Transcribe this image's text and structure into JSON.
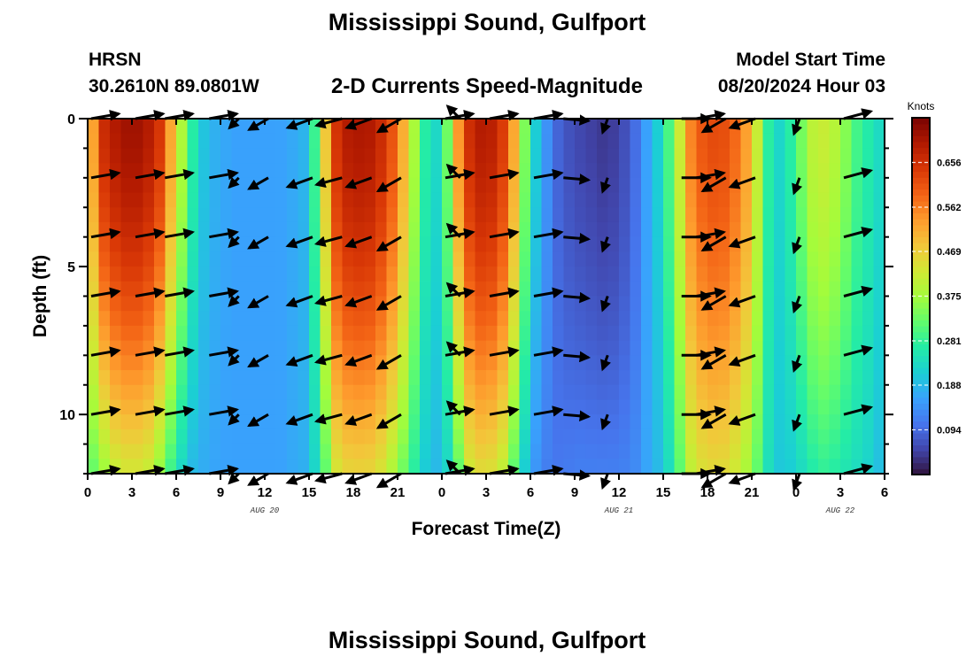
{
  "header": {
    "title": "Mississippi Sound, Gulfport",
    "station_id": "HRSN",
    "station_coords": "30.2610N  89.0801W",
    "subtitle": "2-D Currents Speed-Magnitude",
    "model_start_label": "Model Start Time",
    "model_start_value": "08/20/2024 Hour 03"
  },
  "footer": {
    "title": "Mississippi Sound, Gulfport"
  },
  "chart_data": {
    "type": "heatmap",
    "xlabel": "Forecast Time(Z)",
    "ylabel": "Depth (ft)",
    "x_range_hours": [
      0,
      54
    ],
    "x_tick_labels": [
      "0",
      "3",
      "6",
      "9",
      "12",
      "15",
      "18",
      "21",
      "0",
      "3",
      "6",
      "9",
      "12",
      "15",
      "18",
      "21",
      "0",
      "3",
      "6"
    ],
    "date_labels": [
      {
        "hour": 12,
        "label": "AUG 20"
      },
      {
        "hour": 36,
        "label": "AUG 21"
      },
      {
        "hour": 51,
        "label": "AUG 22"
      }
    ],
    "y_range_ft": [
      0,
      12
    ],
    "y_tick_labels": [
      {
        "value": 0,
        "label": "0"
      },
      {
        "value": 5,
        "label": "5"
      },
      {
        "value": 10,
        "label": "10"
      }
    ],
    "depths_ft": [
      0,
      2,
      4,
      6,
      8,
      10,
      12
    ],
    "speed_profile": {
      "hours": [
        0,
        1,
        2,
        3,
        4,
        5,
        6,
        7,
        8,
        9,
        10,
        11,
        12,
        13,
        14,
        15,
        16,
        17,
        18,
        19,
        20,
        21,
        22,
        23,
        24,
        25,
        26,
        27,
        28,
        29,
        30,
        31,
        32,
        33,
        34,
        35,
        36,
        37,
        38,
        39,
        40,
        41,
        42,
        43,
        44,
        45,
        46,
        47,
        48,
        49,
        50,
        51,
        52,
        53,
        54
      ],
      "surface_speed_knots": [
        0.45,
        0.66,
        0.7,
        0.72,
        0.7,
        0.64,
        0.45,
        0.28,
        0.19,
        0.17,
        0.16,
        0.16,
        0.16,
        0.16,
        0.17,
        0.19,
        0.45,
        0.68,
        0.7,
        0.7,
        0.66,
        0.58,
        0.4,
        0.25,
        0.22,
        0.52,
        0.68,
        0.7,
        0.66,
        0.5,
        0.25,
        0.15,
        0.08,
        0.06,
        0.05,
        0.04,
        0.05,
        0.09,
        0.17,
        0.24,
        0.4,
        0.58,
        0.62,
        0.62,
        0.58,
        0.5,
        0.28,
        0.22,
        0.3,
        0.4,
        0.42,
        0.38,
        0.3,
        0.26,
        0.22
      ],
      "bottom_speed_knots": [
        0.3,
        0.36,
        0.42,
        0.43,
        0.42,
        0.35,
        0.25,
        0.19,
        0.17,
        0.16,
        0.16,
        0.16,
        0.16,
        0.16,
        0.17,
        0.18,
        0.3,
        0.45,
        0.46,
        0.46,
        0.43,
        0.36,
        0.28,
        0.2,
        0.18,
        0.3,
        0.44,
        0.45,
        0.42,
        0.3,
        0.16,
        0.12,
        0.11,
        0.12,
        0.12,
        0.12,
        0.12,
        0.13,
        0.17,
        0.2,
        0.3,
        0.42,
        0.45,
        0.45,
        0.42,
        0.36,
        0.25,
        0.2,
        0.22,
        0.26,
        0.28,
        0.26,
        0.24,
        0.22,
        0.18
      ]
    },
    "arrows": {
      "hours": [
        0,
        3,
        5,
        8,
        10,
        12,
        15,
        17,
        19,
        21,
        24,
        25,
        27,
        30,
        32,
        35,
        40,
        41,
        43,
        45,
        48,
        51
      ],
      "direction_deg": [
        80,
        80,
        80,
        80,
        225,
        240,
        250,
        255,
        250,
        240,
        80,
        315,
        80,
        80,
        95,
        200,
        90,
        80,
        240,
        250,
        200,
        75
      ],
      "length_hours": [
        1.9,
        1.9,
        1.9,
        1.9,
        0.9,
        1.5,
        1.8,
        1.8,
        1.8,
        1.8,
        1.9,
        1.2,
        1.9,
        1.9,
        1.7,
        1.0,
        1.9,
        1.9,
        1.8,
        1.8,
        1.1,
        1.9
      ]
    },
    "colorbar": {
      "label": "Knots",
      "min": 0.0,
      "max": 0.75,
      "tick_labels": [
        {
          "value": 0.656,
          "label": "0.656"
        },
        {
          "value": 0.562,
          "label": "0.562"
        },
        {
          "value": 0.469,
          "label": "0.469"
        },
        {
          "value": 0.375,
          "label": "0.375"
        },
        {
          "value": 0.281,
          "label": "0.281"
        },
        {
          "value": 0.188,
          "label": "0.188"
        },
        {
          "value": 0.094,
          "label": "0.094"
        }
      ],
      "colors": [
        "#30123b",
        "#4145ab",
        "#4675ed",
        "#39a2fc",
        "#1bcfd4",
        "#24eca6",
        "#61fc6c",
        "#a4fc3b",
        "#d1e834",
        "#f3c63a",
        "#fe9b2d",
        "#f36315",
        "#d93806",
        "#b11901",
        "#7a0402"
      ]
    }
  }
}
